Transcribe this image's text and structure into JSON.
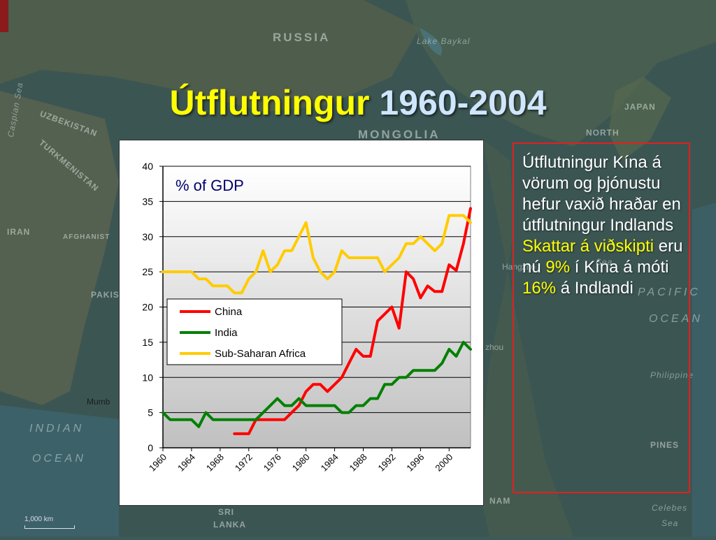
{
  "slide": {
    "title_main": "Útflutningur",
    "title_years": "1960-2004"
  },
  "map_labels": {
    "russia": "RUSSIA",
    "lake_baykal": "Lake Baykal",
    "caspian_sea": "Caspian Sea",
    "uzbekistan": "UZBEKISTAN",
    "turkmenistan": "TURKMENISTAN",
    "mongolia": "MONGOLIA",
    "japan": "JAPAN",
    "north": "NORTH",
    "iran": "IRAN",
    "afghanistan": "AFGHANIST",
    "pakistan": "PAKIS",
    "hangzhou": "Hangzho",
    "sea": "Sea",
    "pacific": "PACIFIC",
    "ocean_right": "OCEAN",
    "mumbai": "Mumb",
    "indian": "INDIAN",
    "ocean_left": "OCEAN",
    "philippine": "Philippine",
    "pines": "PINES",
    "nam": "NAM",
    "sri_lanka_1": "SRI",
    "sri_lanka_2": "LANKA",
    "celebes_1": "Celebes",
    "celebes_2": "Sea",
    "zhou": "zhou",
    "scale": "1,000 km"
  },
  "note": {
    "text1": "Útflutningur Kína á vörum og þjónustu hefur vaxið hraðar en útflutningur Indlands",
    "hl1": "Skattar á viðskipti",
    "text2": " eru nú ",
    "hl2": "9%",
    "text3": " í Kína á móti ",
    "hl3": "16%",
    "text4": " á Indlandi"
  },
  "colors": {
    "china": "#ff0000",
    "india": "#008000",
    "africa": "#ffcc00",
    "title_main": "#ffff00",
    "title_years": "#cfe6ff",
    "note_highlight": "#ffff00",
    "note_border": "#e02020"
  },
  "chart_data": {
    "type": "line",
    "title": "% of GDP",
    "xlabel": "",
    "ylabel": "",
    "xlim": [
      1960,
      2003
    ],
    "ylim": [
      0,
      40
    ],
    "yticks": [
      "0",
      "5",
      "10",
      "15",
      "20",
      "25",
      "30",
      "35",
      "40"
    ],
    "xticks": [
      "1960",
      "1964",
      "1968",
      "1972",
      "1976",
      "1980",
      "1984",
      "1988",
      "1992",
      "1996",
      "2000"
    ],
    "grid": true,
    "legend": "inside-middle-left",
    "series": [
      {
        "name": "China",
        "color": "#ff0000",
        "x": [
          1970,
          1971,
          1972,
          1973,
          1974,
          1975,
          1976,
          1977,
          1978,
          1979,
          1980,
          1981,
          1982,
          1983,
          1984,
          1985,
          1986,
          1987,
          1988,
          1989,
          1990,
          1991,
          1992,
          1993,
          1994,
          1995,
          1996,
          1997,
          1998,
          1999,
          2000,
          2001,
          2002,
          2003
        ],
        "values": [
          2,
          2,
          2,
          4,
          4,
          4,
          4,
          4,
          5,
          6,
          8,
          9,
          9,
          8,
          9,
          10,
          12,
          14,
          13,
          13,
          18,
          19,
          20,
          17,
          25,
          24,
          21.3,
          23,
          22.2,
          22.2,
          26,
          25.2,
          29,
          34
        ]
      },
      {
        "name": "India",
        "color": "#008000",
        "x": [
          1960,
          1961,
          1962,
          1963,
          1964,
          1965,
          1966,
          1967,
          1968,
          1969,
          1970,
          1971,
          1972,
          1973,
          1974,
          1975,
          1976,
          1977,
          1978,
          1979,
          1980,
          1981,
          1982,
          1983,
          1984,
          1985,
          1986,
          1987,
          1988,
          1989,
          1990,
          1991,
          1992,
          1993,
          1994,
          1995,
          1996,
          1997,
          1998,
          1999,
          2000,
          2001,
          2002,
          2003
        ],
        "values": [
          5,
          4,
          4,
          4,
          4,
          3,
          5,
          4,
          4,
          4,
          4,
          4,
          4,
          4,
          5,
          6,
          7,
          6,
          6,
          7,
          6,
          6,
          6,
          6,
          6,
          5,
          5,
          6,
          6,
          7,
          7,
          9,
          9,
          10,
          10,
          11,
          11,
          11,
          11,
          12,
          14,
          13,
          15,
          14
        ]
      },
      {
        "name": "Sub-Saharan Africa",
        "color": "#ffcc00",
        "x": [
          1960,
          1961,
          1962,
          1963,
          1964,
          1965,
          1966,
          1967,
          1968,
          1969,
          1970,
          1971,
          1972,
          1973,
          1974,
          1975,
          1976,
          1977,
          1978,
          1979,
          1980,
          1981,
          1982,
          1983,
          1984,
          1985,
          1986,
          1987,
          1988,
          1989,
          1990,
          1991,
          1992,
          1993,
          1994,
          1995,
          1996,
          1997,
          1998,
          1999,
          2000,
          2001,
          2002,
          2003
        ],
        "values": [
          25,
          25,
          25,
          25,
          25,
          24,
          24,
          23,
          23,
          23,
          22,
          22,
          24,
          25,
          28,
          25,
          26,
          28,
          28,
          30,
          32,
          27,
          25,
          24,
          25,
          28,
          27,
          27,
          27,
          27,
          27,
          25,
          26,
          27,
          29,
          29,
          30,
          29,
          28,
          29,
          33,
          33,
          33,
          32
        ]
      }
    ]
  }
}
